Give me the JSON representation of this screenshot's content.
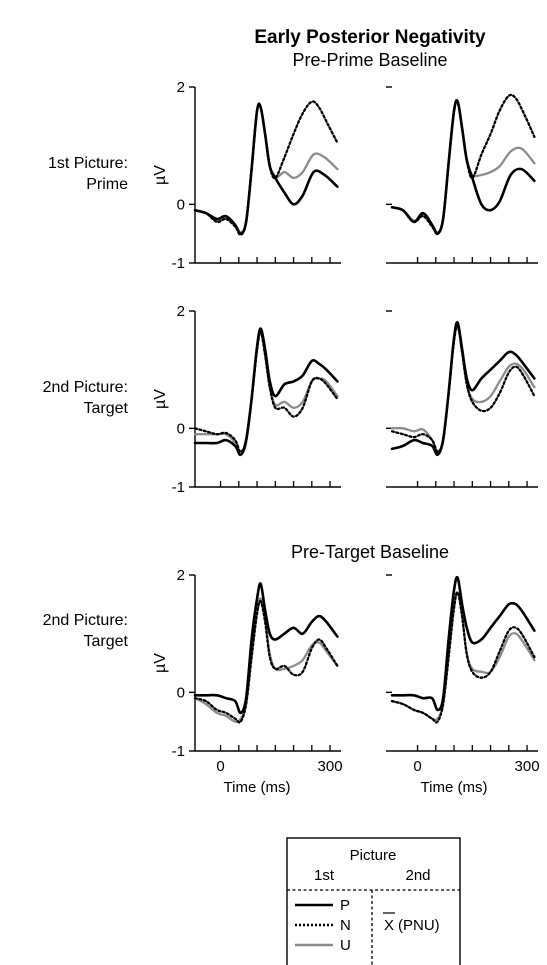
{
  "figure": {
    "title": "Early Posterior Negativity",
    "section_titles": [
      "Pre-Prime Baseline",
      "Pre-Target Baseline"
    ],
    "row_labels": [
      [
        "1st Picture:",
        "Prime"
      ],
      [
        "2nd Picture:",
        "Target"
      ],
      [
        "2nd Picture:",
        "Target"
      ]
    ],
    "ylabel": "µV",
    "xlabel": "Time (ms)"
  },
  "legend": {
    "title": "Picture",
    "col1": "1st",
    "col2": "2nd",
    "entries": [
      "P",
      "N",
      "U"
    ],
    "mean_symbol": "X",
    "mean_suffix": "(PNU)"
  },
  "chart_data": {
    "type": "line",
    "x_range": [
      -70,
      330
    ],
    "y_range": [
      -1,
      2
    ],
    "x_ticks": [
      0,
      300
    ],
    "y_ticks": [
      2,
      0,
      -1
    ],
    "series_style": {
      "P": {
        "color": "#000000",
        "dash": "solid"
      },
      "N": {
        "color": "#000000",
        "dash": "dotted"
      },
      "U": {
        "color": "#8c8c8c",
        "dash": "solid"
      }
    },
    "panels": [
      {
        "row": 1,
        "col": 1,
        "series": [
          {
            "name": "P",
            "x": [
              -70,
              -40,
              -10,
              15,
              40,
              55,
              70,
              85,
              100,
              110,
              122,
              135,
              150,
              175,
              200,
              225,
              255,
              285,
              320
            ],
            "y": [
              -0.1,
              -0.15,
              -0.25,
              -0.2,
              -0.35,
              -0.5,
              -0.3,
              0.6,
              1.6,
              1.65,
              1.2,
              0.65,
              0.45,
              0.2,
              0.0,
              0.15,
              0.55,
              0.5,
              0.3
            ]
          },
          {
            "name": "N",
            "x": [
              -70,
              -40,
              -10,
              15,
              40,
              55,
              70,
              85,
              100,
              110,
              122,
              135,
              150,
              175,
              200,
              225,
              250,
              270,
              295,
              320
            ],
            "y": [
              -0.1,
              -0.15,
              -0.3,
              -0.25,
              -0.38,
              -0.52,
              -0.3,
              0.6,
              1.6,
              1.65,
              1.2,
              0.65,
              0.45,
              0.8,
              1.2,
              1.55,
              1.75,
              1.65,
              1.35,
              1.05
            ]
          },
          {
            "name": "U",
            "x": [
              -70,
              -40,
              -10,
              15,
              40,
              55,
              70,
              85,
              100,
              110,
              122,
              135,
              150,
              175,
              200,
              225,
              255,
              285,
              320
            ],
            "y": [
              -0.1,
              -0.15,
              -0.28,
              -0.22,
              -0.36,
              -0.48,
              -0.3,
              0.6,
              1.6,
              1.65,
              1.2,
              0.65,
              0.45,
              0.55,
              0.45,
              0.55,
              0.85,
              0.8,
              0.6
            ]
          }
        ]
      },
      {
        "row": 1,
        "col": 2,
        "series": [
          {
            "name": "P",
            "x": [
              -70,
              -40,
              -10,
              15,
              40,
              55,
              70,
              85,
              100,
              110,
              122,
              135,
              150,
              175,
              200,
              225,
              255,
              285,
              320
            ],
            "y": [
              -0.05,
              -0.1,
              -0.3,
              -0.15,
              -0.35,
              -0.5,
              -0.25,
              0.7,
              1.6,
              1.75,
              1.3,
              0.75,
              0.45,
              0.0,
              -0.1,
              0.05,
              0.5,
              0.6,
              0.4
            ]
          },
          {
            "name": "N",
            "x": [
              -70,
              -40,
              -10,
              15,
              40,
              55,
              70,
              85,
              100,
              110,
              122,
              135,
              150,
              175,
              200,
              225,
              250,
              270,
              295,
              320
            ],
            "y": [
              -0.05,
              -0.1,
              -0.3,
              -0.2,
              -0.38,
              -0.5,
              -0.25,
              0.7,
              1.6,
              1.75,
              1.3,
              0.75,
              0.45,
              0.85,
              1.2,
              1.6,
              1.85,
              1.8,
              1.5,
              1.15
            ]
          },
          {
            "name": "U",
            "x": [
              -70,
              -40,
              -10,
              15,
              40,
              55,
              70,
              85,
              100,
              110,
              122,
              135,
              150,
              175,
              200,
              225,
              255,
              285,
              320
            ],
            "y": [
              -0.05,
              -0.1,
              -0.28,
              -0.18,
              -0.36,
              -0.48,
              -0.25,
              0.7,
              1.6,
              1.75,
              1.3,
              0.75,
              0.5,
              0.5,
              0.55,
              0.65,
              0.9,
              0.95,
              0.7
            ]
          }
        ]
      },
      {
        "row": 2,
        "col": 1,
        "series": [
          {
            "name": "P",
            "x": [
              -70,
              -40,
              -10,
              15,
              40,
              55,
              70,
              85,
              100,
              110,
              122,
              135,
              150,
              175,
              200,
              225,
              250,
              270,
              290,
              320
            ],
            "y": [
              -0.25,
              -0.25,
              -0.25,
              -0.2,
              -0.3,
              -0.45,
              -0.2,
              0.5,
              1.4,
              1.7,
              1.35,
              0.8,
              0.55,
              0.75,
              0.8,
              0.9,
              1.15,
              1.1,
              1.0,
              0.8
            ]
          },
          {
            "name": "N",
            "x": [
              -70,
              -40,
              -10,
              15,
              40,
              55,
              70,
              85,
              100,
              110,
              122,
              135,
              150,
              175,
              200,
              225,
              250,
              270,
              290,
              320
            ],
            "y": [
              0.0,
              -0.05,
              -0.1,
              -0.08,
              -0.2,
              -0.4,
              -0.2,
              0.5,
              1.35,
              1.65,
              1.25,
              0.7,
              0.35,
              0.35,
              0.2,
              0.35,
              0.8,
              0.85,
              0.75,
              0.5
            ]
          },
          {
            "name": "U",
            "x": [
              -70,
              -40,
              -10,
              15,
              40,
              55,
              70,
              85,
              100,
              110,
              122,
              135,
              150,
              175,
              200,
              225,
              250,
              270,
              290,
              320
            ],
            "y": [
              -0.1,
              -0.1,
              -0.1,
              -0.1,
              -0.25,
              -0.45,
              -0.25,
              0.5,
              1.35,
              1.65,
              1.25,
              0.7,
              0.4,
              0.45,
              0.35,
              0.45,
              0.8,
              0.85,
              0.8,
              0.55
            ]
          }
        ]
      },
      {
        "row": 2,
        "col": 2,
        "series": [
          {
            "name": "P",
            "x": [
              -70,
              -40,
              -10,
              15,
              40,
              55,
              70,
              85,
              100,
              110,
              122,
              135,
              150,
              175,
              200,
              225,
              250,
              270,
              290,
              320
            ],
            "y": [
              -0.35,
              -0.3,
              -0.2,
              -0.25,
              -0.3,
              -0.45,
              -0.2,
              0.6,
              1.55,
              1.8,
              1.35,
              0.85,
              0.65,
              0.85,
              1.0,
              1.15,
              1.3,
              1.25,
              1.1,
              0.85
            ]
          },
          {
            "name": "N",
            "x": [
              -70,
              -40,
              -10,
              15,
              40,
              55,
              70,
              85,
              100,
              110,
              122,
              135,
              150,
              175,
              200,
              225,
              250,
              270,
              290,
              320
            ],
            "y": [
              -0.05,
              -0.1,
              -0.15,
              -0.1,
              -0.2,
              -0.4,
              -0.2,
              0.6,
              1.5,
              1.75,
              1.3,
              0.75,
              0.45,
              0.3,
              0.35,
              0.6,
              0.95,
              1.05,
              0.9,
              0.55
            ]
          },
          {
            "name": "U",
            "x": [
              -70,
              -40,
              -10,
              15,
              40,
              55,
              70,
              85,
              100,
              110,
              122,
              135,
              150,
              175,
              200,
              225,
              250,
              270,
              290,
              320
            ],
            "y": [
              0.0,
              0.0,
              -0.05,
              -0.02,
              -0.2,
              -0.4,
              -0.2,
              0.6,
              1.5,
              1.75,
              1.3,
              0.75,
              0.5,
              0.45,
              0.55,
              0.8,
              1.05,
              1.1,
              1.0,
              0.7
            ]
          }
        ]
      },
      {
        "row": 3,
        "col": 1,
        "series": [
          {
            "name": "P",
            "x": [
              -70,
              -40,
              -10,
              15,
              40,
              55,
              70,
              85,
              100,
              110,
              122,
              135,
              150,
              175,
              200,
              225,
              250,
              270,
              290,
              320
            ],
            "y": [
              -0.05,
              -0.05,
              -0.05,
              -0.1,
              -0.15,
              -0.35,
              -0.1,
              0.9,
              1.6,
              1.85,
              1.4,
              1.0,
              0.9,
              1.0,
              1.1,
              1.0,
              1.2,
              1.3,
              1.2,
              0.95
            ]
          },
          {
            "name": "N",
            "x": [
              -70,
              -40,
              -10,
              15,
              40,
              55,
              70,
              85,
              100,
              110,
              122,
              135,
              150,
              175,
              200,
              225,
              250,
              270,
              290,
              320
            ],
            "y": [
              -0.1,
              -0.15,
              -0.3,
              -0.35,
              -0.45,
              -0.5,
              -0.2,
              0.6,
              1.35,
              1.55,
              1.2,
              0.6,
              0.4,
              0.45,
              0.3,
              0.35,
              0.75,
              0.9,
              0.75,
              0.45
            ]
          },
          {
            "name": "U",
            "x": [
              -70,
              -40,
              -10,
              15,
              40,
              55,
              70,
              85,
              100,
              110,
              122,
              135,
              150,
              175,
              200,
              225,
              250,
              270,
              290,
              320
            ],
            "y": [
              -0.1,
              -0.2,
              -0.35,
              -0.4,
              -0.5,
              -0.45,
              -0.2,
              0.6,
              1.35,
              1.6,
              1.25,
              0.65,
              0.4,
              0.4,
              0.45,
              0.55,
              0.8,
              0.85,
              0.7,
              0.45
            ]
          }
        ]
      },
      {
        "row": 3,
        "col": 2,
        "series": [
          {
            "name": "P",
            "x": [
              -70,
              -40,
              -10,
              15,
              40,
              55,
              70,
              85,
              100,
              110,
              122,
              135,
              150,
              175,
              200,
              225,
              250,
              270,
              290,
              320
            ],
            "y": [
              -0.05,
              -0.05,
              -0.05,
              -0.1,
              -0.1,
              -0.3,
              -0.1,
              0.9,
              1.75,
              1.95,
              1.5,
              1.1,
              0.85,
              0.9,
              1.1,
              1.3,
              1.5,
              1.5,
              1.35,
              1.05
            ]
          },
          {
            "name": "N",
            "x": [
              -70,
              -40,
              -10,
              15,
              40,
              55,
              70,
              85,
              100,
              110,
              122,
              135,
              150,
              175,
              200,
              225,
              250,
              270,
              290,
              320
            ],
            "y": [
              -0.15,
              -0.2,
              -0.3,
              -0.35,
              -0.45,
              -0.5,
              -0.2,
              0.6,
              1.45,
              1.7,
              1.3,
              0.65,
              0.35,
              0.25,
              0.35,
              0.7,
              1.05,
              1.1,
              0.95,
              0.6
            ]
          },
          {
            "name": "U",
            "x": [
              -70,
              -40,
              -10,
              15,
              40,
              55,
              70,
              85,
              100,
              110,
              122,
              135,
              150,
              175,
              200,
              225,
              250,
              270,
              290,
              320
            ],
            "y": [
              -0.15,
              -0.2,
              -0.3,
              -0.35,
              -0.45,
              -0.45,
              -0.2,
              0.6,
              1.45,
              1.7,
              1.3,
              0.65,
              0.4,
              0.35,
              0.35,
              0.6,
              0.95,
              1.0,
              0.85,
              0.55
            ]
          }
        ]
      }
    ]
  }
}
